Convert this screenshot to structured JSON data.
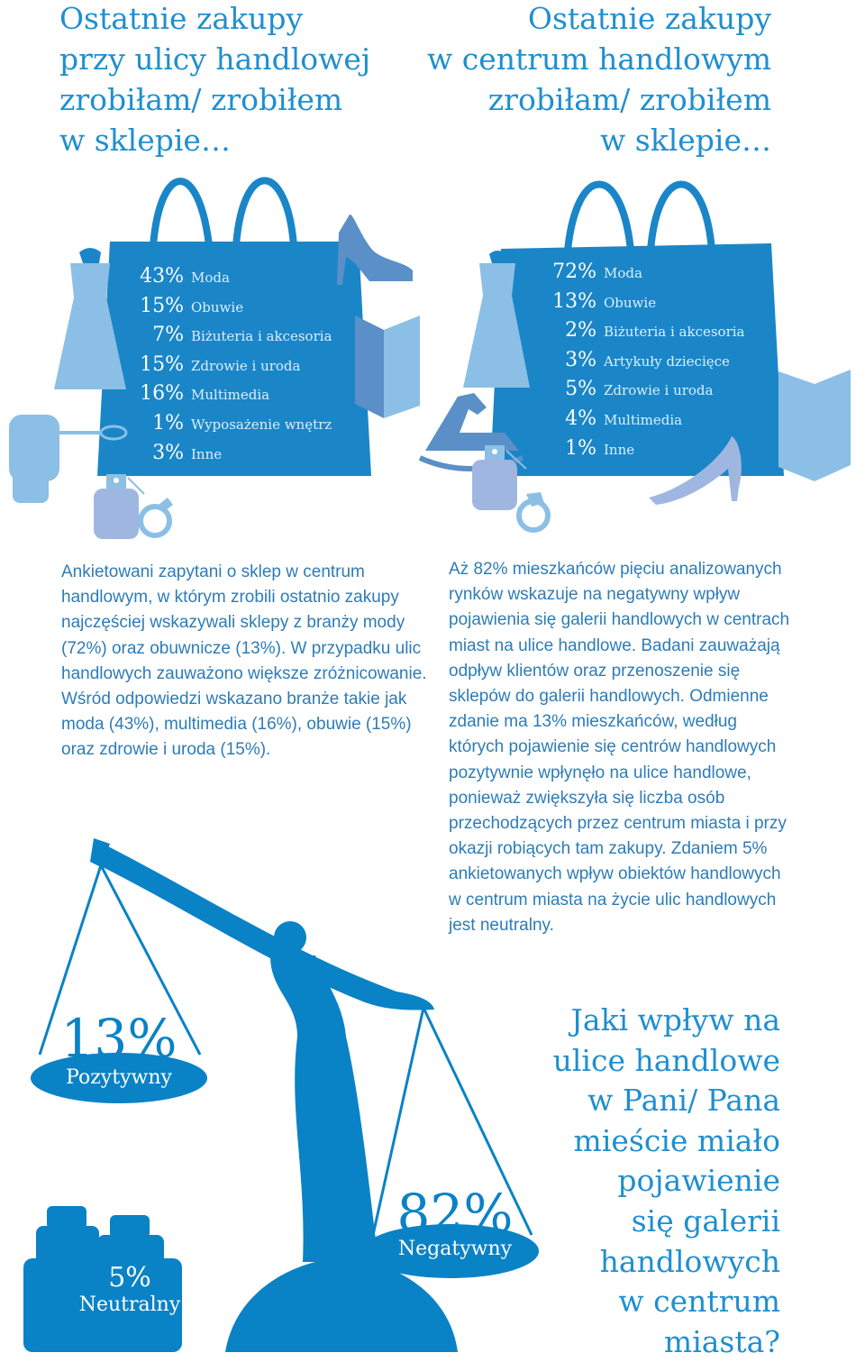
{
  "left_heading": [
    "Ostatnie zakupy",
    "przy ulicy handlowej",
    "zrobiłam/ zrobiłem",
    "w sklepie…"
  ],
  "right_heading": [
    "Ostatnie zakupy",
    "w centrum handlowym",
    "zrobiłam/ zrobiłem",
    "w sklepie…"
  ],
  "colors": {
    "accent": "#1f8fd0",
    "bag": "#1a86c8",
    "light_icon": "#8cbfe5",
    "mid_icon": "#5b8fc7",
    "text": "#2d7cb8",
    "scale": "#0a82c6"
  },
  "chart_data": [
    {
      "type": "table",
      "title": "Ostatnie zakupy przy ulicy handlowej",
      "categories": [
        "Moda",
        "Obuwie",
        "Biżuteria i akcesoria",
        "Zdrowie i uroda",
        "Multimedia",
        "Wyposażenie wnętrz",
        "Inne"
      ],
      "values": [
        43,
        15,
        7,
        15,
        16,
        1,
        3
      ],
      "labels": [
        "43%",
        "15%",
        "7%",
        "15%",
        "16%",
        "1%",
        "3%"
      ],
      "unit": "%"
    },
    {
      "type": "table",
      "title": "Ostatnie zakupy w centrum handlowym",
      "categories": [
        "Moda",
        "Obuwie",
        "Biżuteria i akcesoria",
        "Artykuły dziecięce",
        "Zdrowie i uroda",
        "Multimedia",
        "Inne"
      ],
      "values": [
        72,
        13,
        2,
        3,
        5,
        4,
        1
      ],
      "labels": [
        "72%",
        "13%",
        "2%",
        "3%",
        "5%",
        "4%",
        "1%"
      ],
      "unit": "%"
    },
    {
      "type": "table",
      "title": "Jaki wpływ na ulice handlowe w Pani/ Pana mieście miało pojawienie się galerii handlowych w centrum miasta?",
      "categories": [
        "Pozytywny",
        "Neutralny",
        "Negatywny"
      ],
      "values": [
        13,
        5,
        82
      ],
      "labels": [
        "13%",
        "5%",
        "82%"
      ],
      "unit": "%"
    }
  ],
  "para_left": "Ankietowani zapytani o sklep w centrum handlowym, w którym zrobili ostatnio zakupy najczęściej wskazywali sklepy z branży mody (72%) oraz obuwnicze (13%). W przypadku ulic handlowych zauważono większe zróżnicowanie. Wśród odpowiedzi wskazano branże takie jak moda (43%), multimedia (16%), obuwie (15%) oraz zdrowie i uroda (15%).",
  "para_right": "Aż 82% mieszkańców pięciu analizowanych rynków wskazuje na negatywny wpływ pojawienia się galerii handlowych w centrach miast na ulice handlowe. Badani zauważają odpływ klientów oraz przenoszenie się sklepów do galerii handlowych. Odmienne zdanie ma 13% mieszkańców, według których pojawienie się centrów handlowych pozytywnie wpłynęło na ulice handlowe, ponieważ zwiększyła się liczba osób przechodzących przez centrum miasta i przy okazji robiących tam zakupy. Zdaniem 5% ankietowanych wpływ obiektów handlowych w centrum miasta na życie ulic handlowych jest neutralny.",
  "question": [
    "Jaki wpływ na",
    "ulice handlowe",
    "w Pani/ Pana",
    "mieście miało",
    "pojawienie",
    "się galerii",
    "handlowych",
    "w centrum",
    "miasta?"
  ]
}
